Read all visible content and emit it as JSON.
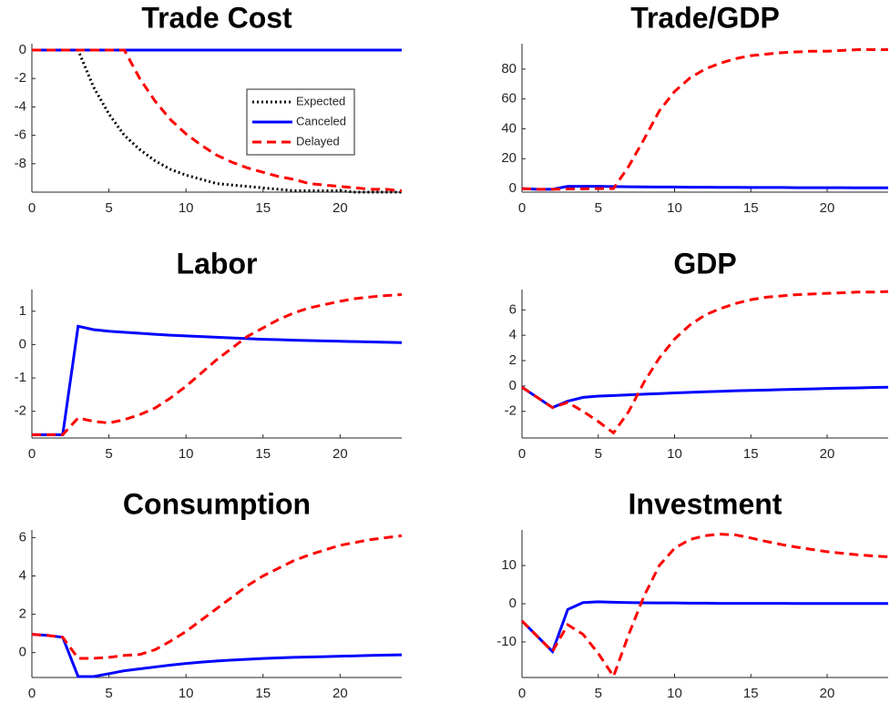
{
  "chart_data": [
    {
      "type": "line",
      "title": "Trade Cost",
      "x": [
        0,
        1,
        2,
        3,
        4,
        5,
        6,
        7,
        8,
        9,
        10,
        11,
        12,
        13,
        14,
        15,
        16,
        17,
        18,
        19,
        20,
        21,
        22,
        23,
        24
      ],
      "xlim": [
        0,
        24
      ],
      "xticks": [
        0,
        5,
        10,
        15,
        20
      ],
      "ylim": [
        -10,
        0.45
      ],
      "yticks": [
        -8,
        -6,
        -4,
        -2,
        0
      ],
      "legend": "northeast",
      "series": [
        {
          "name": "Expected",
          "color": "#000000",
          "style": "dotted",
          "values": [
            0,
            0,
            0,
            0,
            -2.6,
            -4.5,
            -6.0,
            -7.0,
            -7.8,
            -8.4,
            -8.8,
            -9.1,
            -9.4,
            -9.5,
            -9.6,
            -9.7,
            -9.8,
            -9.9,
            -9.9,
            -9.9,
            -9.9,
            -10,
            -10,
            -10,
            -10
          ]
        },
        {
          "name": "Canceled",
          "color": "#0000ff",
          "style": "solid",
          "values": [
            0,
            0,
            0,
            0,
            0,
            0,
            0,
            0,
            0,
            0,
            0,
            0,
            0,
            0,
            0,
            0,
            0,
            0,
            0,
            0,
            0,
            0,
            0,
            0,
            0
          ]
        },
        {
          "name": "Delayed",
          "color": "#ff0000",
          "style": "dashed",
          "values": [
            0,
            0,
            0,
            0,
            0,
            0,
            0,
            -2.0,
            -3.6,
            -4.9,
            -5.9,
            -6.7,
            -7.4,
            -7.9,
            -8.3,
            -8.6,
            -8.9,
            -9.1,
            -9.4,
            -9.5,
            -9.6,
            -9.7,
            -9.8,
            -9.8,
            -9.9
          ]
        }
      ]
    },
    {
      "type": "line",
      "title": "Trade/GDP",
      "x": [
        0,
        1,
        2,
        3,
        4,
        5,
        6,
        7,
        8,
        9,
        10,
        11,
        12,
        13,
        14,
        15,
        16,
        17,
        18,
        19,
        20,
        21,
        22,
        23,
        24
      ],
      "xlim": [
        0,
        24
      ],
      "xticks": [
        0,
        5,
        10,
        15,
        20
      ],
      "ylim": [
        -2.4,
        97
      ],
      "yticks": [
        0,
        20,
        40,
        60,
        80
      ],
      "series": [
        {
          "name": "Canceled",
          "color": "#0000ff",
          "style": "solid",
          "values": [
            0,
            -0.5,
            -0.5,
            1.5,
            1.5,
            1.5,
            1.3,
            1.2,
            1.1,
            1.0,
            1.0,
            0.9,
            0.9,
            0.8,
            0.8,
            0.7,
            0.7,
            0.7,
            0.6,
            0.6,
            0.6,
            0.6,
            0.5,
            0.5,
            0.5
          ]
        },
        {
          "name": "Delayed",
          "color": "#ff0000",
          "style": "dashed",
          "values": [
            0,
            -0.5,
            -0.5,
            -0.3,
            -0.2,
            0,
            0,
            15,
            33,
            52,
            65,
            74,
            80,
            84,
            87,
            89,
            90,
            91,
            91.5,
            92,
            92,
            92.5,
            93,
            93,
            93
          ]
        }
      ]
    },
    {
      "type": "line",
      "title": "Labor",
      "x": [
        0,
        1,
        2,
        3,
        4,
        5,
        6,
        7,
        8,
        9,
        10,
        11,
        12,
        13,
        14,
        15,
        16,
        17,
        18,
        19,
        20,
        21,
        22,
        23,
        24
      ],
      "xlim": [
        0,
        24
      ],
      "xticks": [
        0,
        5,
        10,
        15,
        20
      ],
      "ylim": [
        -2.8,
        1.65
      ],
      "yticks": [
        -2,
        -1,
        0,
        1
      ],
      "series": [
        {
          "name": "Canceled",
          "color": "#0000ff",
          "style": "solid",
          "values": [
            -2.7,
            -2.7,
            -2.7,
            0.55,
            0.45,
            0.4,
            0.37,
            0.34,
            0.31,
            0.28,
            0.26,
            0.24,
            0.22,
            0.2,
            0.18,
            0.16,
            0.15,
            0.13,
            0.12,
            0.11,
            0.1,
            0.09,
            0.08,
            0.07,
            0.06
          ]
        },
        {
          "name": "Delayed",
          "color": "#ff0000",
          "style": "dashed",
          "values": [
            -2.7,
            -2.7,
            -2.7,
            -2.2,
            -2.3,
            -2.35,
            -2.25,
            -2.1,
            -1.9,
            -1.6,
            -1.25,
            -0.85,
            -0.45,
            -0.1,
            0.25,
            0.5,
            0.75,
            0.95,
            1.1,
            1.2,
            1.3,
            1.38,
            1.43,
            1.47,
            1.5
          ]
        }
      ]
    },
    {
      "type": "line",
      "title": "GDP",
      "x": [
        0,
        1,
        2,
        3,
        4,
        5,
        6,
        7,
        8,
        9,
        10,
        11,
        12,
        13,
        14,
        15,
        16,
        17,
        18,
        19,
        20,
        21,
        22,
        23,
        24
      ],
      "xlim": [
        0,
        24
      ],
      "xticks": [
        0,
        5,
        10,
        15,
        20
      ],
      "ylim": [
        -4.1,
        7.6
      ],
      "yticks": [
        -2,
        0,
        2,
        4,
        6
      ],
      "series": [
        {
          "name": "Canceled",
          "color": "#0000ff",
          "style": "solid",
          "values": [
            -0.1,
            -0.9,
            -1.7,
            -1.2,
            -0.9,
            -0.8,
            -0.75,
            -0.7,
            -0.65,
            -0.6,
            -0.55,
            -0.5,
            -0.46,
            -0.42,
            -0.38,
            -0.35,
            -0.32,
            -0.29,
            -0.26,
            -0.23,
            -0.2,
            -0.17,
            -0.15,
            -0.12,
            -0.1
          ]
        },
        {
          "name": "Delayed",
          "color": "#ff0000",
          "style": "dashed",
          "values": [
            -0.1,
            -0.9,
            -1.7,
            -1.3,
            -2.0,
            -2.8,
            -3.7,
            -2.0,
            0.3,
            2.2,
            3.7,
            4.8,
            5.6,
            6.1,
            6.5,
            6.8,
            7.0,
            7.1,
            7.2,
            7.25,
            7.3,
            7.35,
            7.4,
            7.4,
            7.45
          ]
        }
      ]
    },
    {
      "type": "line",
      "title": "Consumption",
      "x": [
        0,
        1,
        2,
        3,
        4,
        5,
        6,
        7,
        8,
        9,
        10,
        11,
        12,
        13,
        14,
        15,
        16,
        17,
        18,
        19,
        20,
        21,
        22,
        23,
        24
      ],
      "xlim": [
        0,
        24
      ],
      "xticks": [
        0,
        5,
        10,
        15,
        20
      ],
      "ylim": [
        -1.3,
        6.4
      ],
      "yticks": [
        0,
        2,
        4,
        6
      ],
      "series": [
        {
          "name": "Canceled",
          "color": "#0000ff",
          "style": "solid",
          "values": [
            0.95,
            0.9,
            0.8,
            -1.25,
            -1.25,
            -1.1,
            -0.95,
            -0.85,
            -0.75,
            -0.65,
            -0.57,
            -0.5,
            -0.44,
            -0.39,
            -0.35,
            -0.31,
            -0.28,
            -0.25,
            -0.23,
            -0.21,
            -0.19,
            -0.17,
            -0.15,
            -0.13,
            -0.12
          ]
        },
        {
          "name": "Delayed",
          "color": "#ff0000",
          "style": "dashed",
          "values": [
            0.95,
            0.9,
            0.8,
            -0.3,
            -0.3,
            -0.25,
            -0.15,
            -0.1,
            0.15,
            0.6,
            1.1,
            1.7,
            2.3,
            2.9,
            3.5,
            4.0,
            4.4,
            4.8,
            5.1,
            5.35,
            5.6,
            5.75,
            5.9,
            6.0,
            6.1
          ]
        }
      ]
    },
    {
      "type": "line",
      "title": "Investment",
      "x": [
        0,
        1,
        2,
        3,
        4,
        5,
        6,
        7,
        8,
        9,
        10,
        11,
        12,
        13,
        14,
        15,
        16,
        17,
        18,
        19,
        20,
        21,
        22,
        23,
        24
      ],
      "xlim": [
        0,
        24
      ],
      "xticks": [
        0,
        5,
        10,
        15,
        20
      ],
      "ylim": [
        -19.3,
        19.3
      ],
      "yticks": [
        -10,
        0,
        10
      ],
      "series": [
        {
          "name": "Canceled",
          "color": "#0000ff",
          "style": "solid",
          "values": [
            -4.5,
            -8.5,
            -12.5,
            -1.5,
            0.3,
            0.5,
            0.4,
            0.3,
            0.25,
            0.2,
            0.2,
            0.15,
            0.15,
            0.1,
            0.1,
            0.1,
            0.1,
            0.1,
            0.05,
            0.05,
            0.05,
            0.05,
            0.05,
            0.05,
            0.05
          ]
        },
        {
          "name": "Delayed",
          "color": "#ff0000",
          "style": "dashed",
          "values": [
            -4.5,
            -8.5,
            -12.5,
            -5.5,
            -8,
            -13,
            -19,
            -8,
            2,
            10,
            14.5,
            16.8,
            17.8,
            18.2,
            18,
            17.2,
            16.3,
            15.5,
            14.8,
            14.2,
            13.6,
            13.2,
            12.8,
            12.5,
            12.3
          ]
        }
      ]
    }
  ]
}
